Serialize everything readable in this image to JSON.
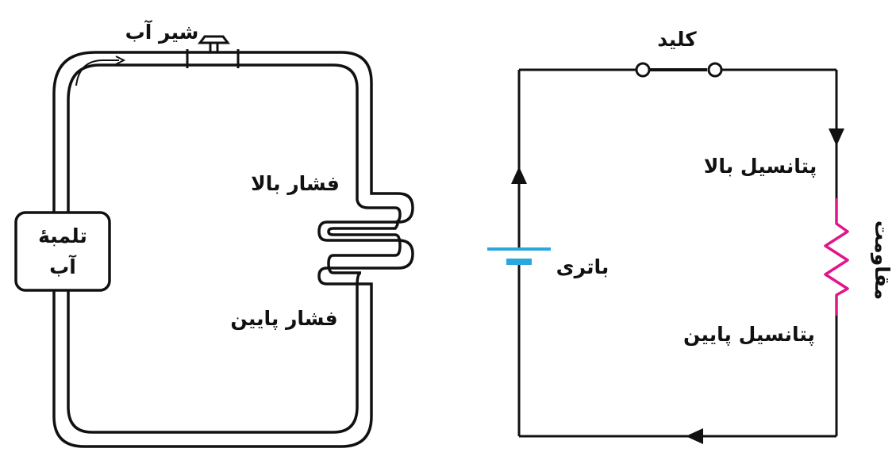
{
  "water_circuit": {
    "faucet_label": "شیر آب",
    "pump_label_line1": "تلمبهٔ",
    "pump_label_line2": "آب",
    "high_pressure_label": "فشار بالا",
    "low_pressure_label": "فشار پایین"
  },
  "electric_circuit": {
    "switch_label": "کلید",
    "high_potential_label": "پتانسیل بالا",
    "low_potential_label": "پتانسیل پایین",
    "battery_label": "باتری",
    "resistance_label": "مقاومت"
  },
  "colors": {
    "line": "#111111",
    "battery": "#29a8e0",
    "resistor": "#e0168a"
  }
}
